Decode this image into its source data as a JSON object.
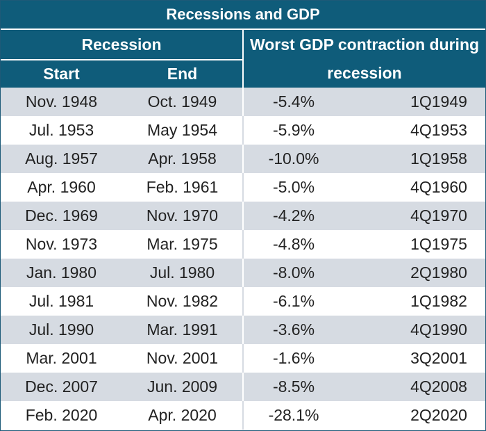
{
  "chart_data": {
    "type": "table",
    "title": "Recessions and GDP",
    "group_headers": [
      "Recession",
      "Worst GDP contraction during recession"
    ],
    "columns": [
      "Start",
      "End",
      "",
      ""
    ],
    "rows": [
      [
        "Nov. 1948",
        "Oct. 1949",
        "-5.4%",
        "1Q1949"
      ],
      [
        "Jul. 1953",
        "May 1954",
        "-5.9%",
        "4Q1953"
      ],
      [
        "Aug. 1957",
        "Apr. 1958",
        "-10.0%",
        "1Q1958"
      ],
      [
        "Apr. 1960",
        "Feb. 1961",
        "-5.0%",
        "4Q1960"
      ],
      [
        "Dec. 1969",
        "Nov. 1970",
        "-4.2%",
        "4Q1970"
      ],
      [
        "Nov. 1973",
        "Mar. 1975",
        "-4.8%",
        "1Q1975"
      ],
      [
        "Jan. 1980",
        "Jul. 1980",
        "-8.0%",
        "2Q1980"
      ],
      [
        "Jul. 1981",
        "Nov. 1982",
        "-6.1%",
        "1Q1982"
      ],
      [
        "Jul. 1990",
        "Mar. 1991",
        "-3.6%",
        "4Q1990"
      ],
      [
        "Mar. 2001",
        "Nov. 2001",
        "-1.6%",
        "3Q2001"
      ],
      [
        "Dec. 2007",
        "Jun. 2009",
        "-8.5%",
        "4Q2008"
      ],
      [
        "Feb. 2020",
        "Apr. 2020",
        "-28.1%",
        "2Q2020"
      ]
    ]
  },
  "colors": {
    "header_bg": "#0f5c7a",
    "header_text": "#ffffff",
    "stripe": "#d6dbe2",
    "body_text": "#222222"
  }
}
